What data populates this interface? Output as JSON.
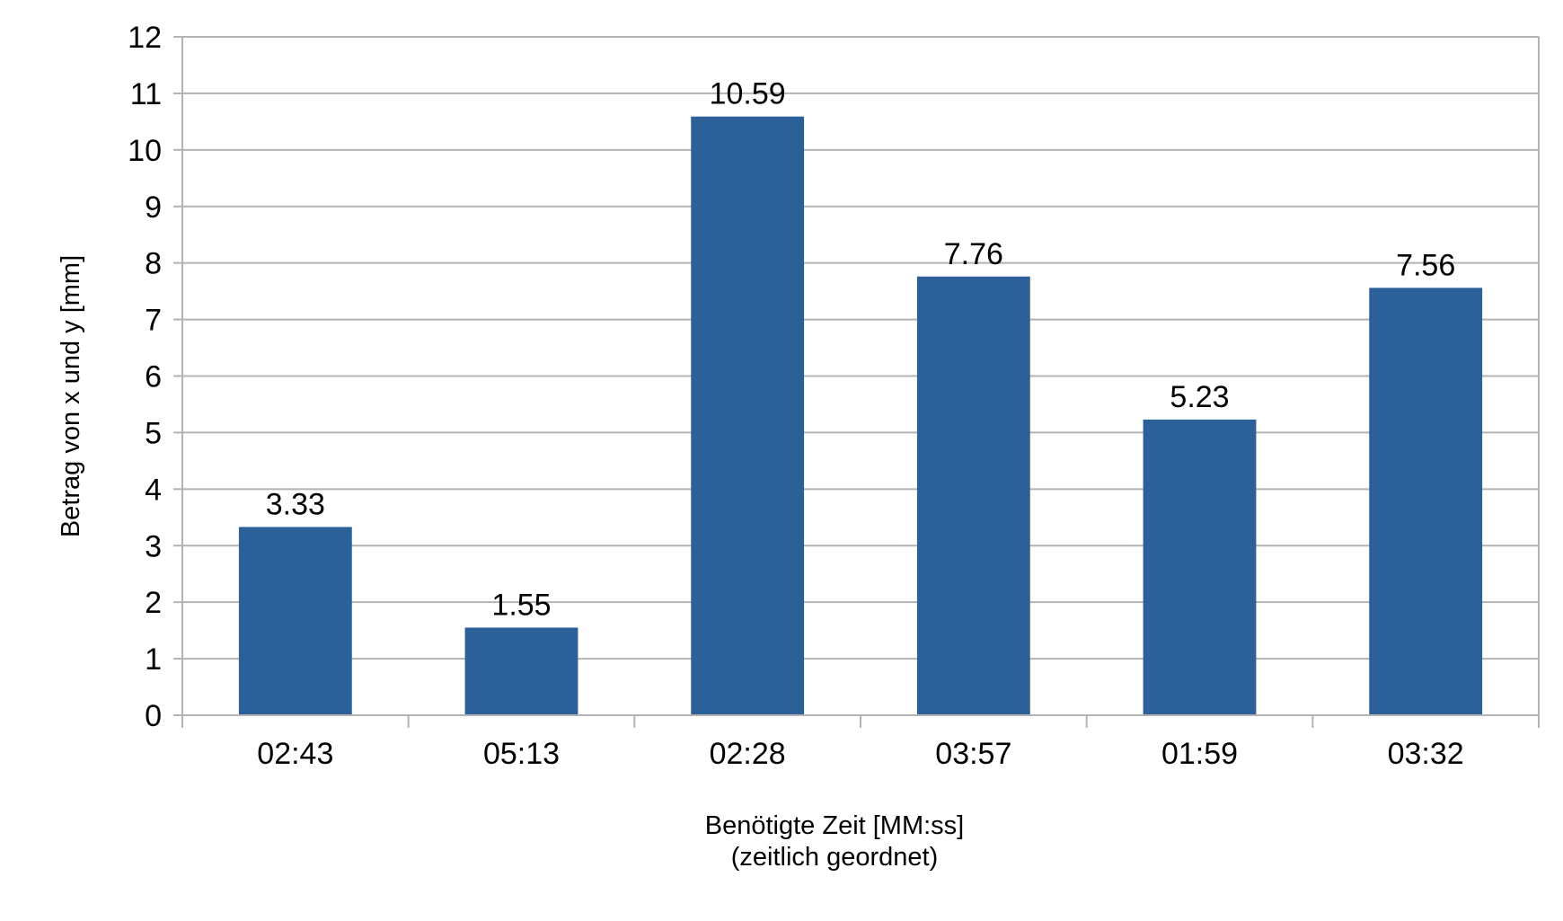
{
  "chart_data": {
    "type": "bar",
    "categories": [
      "02:43",
      "05:13",
      "02:28",
      "03:57",
      "01:59",
      "03:32"
    ],
    "values": [
      3.33,
      1.55,
      10.59,
      7.76,
      5.23,
      7.56
    ],
    "data_labels": [
      "3.33",
      "1.55",
      "10.59",
      "7.76",
      "5.23",
      "7.56"
    ],
    "title": "",
    "xlabel": [
      "Benötigte Zeit [MM:ss]",
      "(zeitlich geordnet)"
    ],
    "ylabel": "Betrag von x und y [mm]",
    "ylim": [
      0,
      12
    ],
    "yticks": [
      0,
      1,
      2,
      3,
      4,
      5,
      6,
      7,
      8,
      9,
      10,
      11,
      12
    ],
    "grid": true,
    "legend": "none",
    "colors": {
      "bar": "#2b6098",
      "grid": "#b3b3b3",
      "text": "#000000"
    }
  }
}
